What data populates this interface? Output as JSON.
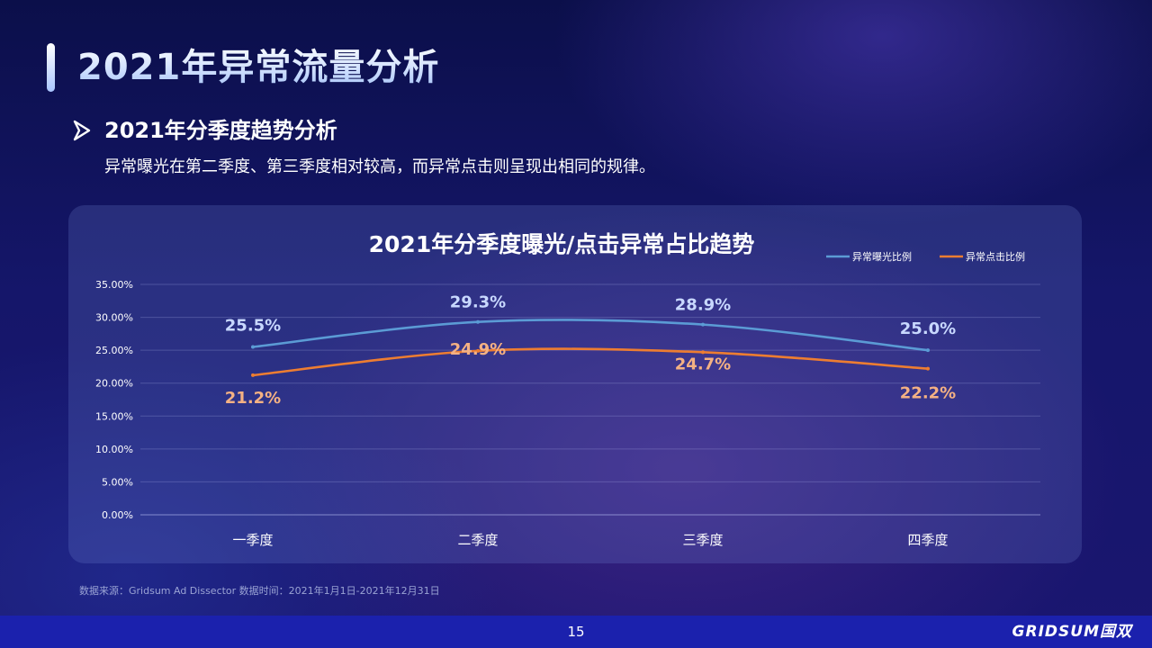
{
  "page": {
    "title": "2021年异常流量分析",
    "section_title": "2021年分季度趋势分析",
    "section_desc": "异常曝光在第二季度、第三季度相对较高，而异常点击则呈现出相同的规律。",
    "source_note": "数据来源：Gridsum Ad Dissector 数据时间：2021年1月1日-2021年12月31日",
    "page_number": "15",
    "brand": "GRIDSUM国双"
  },
  "colors": {
    "exposure": "#5b9bd5",
    "exposure_label": "#c8d8ff",
    "click": "#ed7d31",
    "click_label": "#f4b183"
  },
  "chart_data": {
    "type": "line",
    "title": "2021年分季度曝光/点击异常占比趋势",
    "categories": [
      "一季度",
      "二季度",
      "三季度",
      "四季度"
    ],
    "series": [
      {
        "name": "异常曝光比例",
        "values": [
          25.5,
          29.3,
          28.9,
          25.0
        ],
        "labels": [
          "25.5%",
          "29.3%",
          "28.9%",
          "25.0%"
        ]
      },
      {
        "name": "异常点击比例",
        "values": [
          21.2,
          24.9,
          24.7,
          22.2
        ],
        "labels": [
          "21.2%",
          "24.9%",
          "24.7%",
          "22.2%"
        ]
      }
    ],
    "ylim": [
      0,
      35
    ],
    "yticks": [
      0,
      5,
      10,
      15,
      20,
      25,
      30,
      35
    ],
    "ytick_labels": [
      "0.00%",
      "5.00%",
      "10.00%",
      "15.00%",
      "20.00%",
      "25.00%",
      "30.00%",
      "35.00%"
    ],
    "grid": true,
    "legend": "top-right",
    "smooth": true
  }
}
